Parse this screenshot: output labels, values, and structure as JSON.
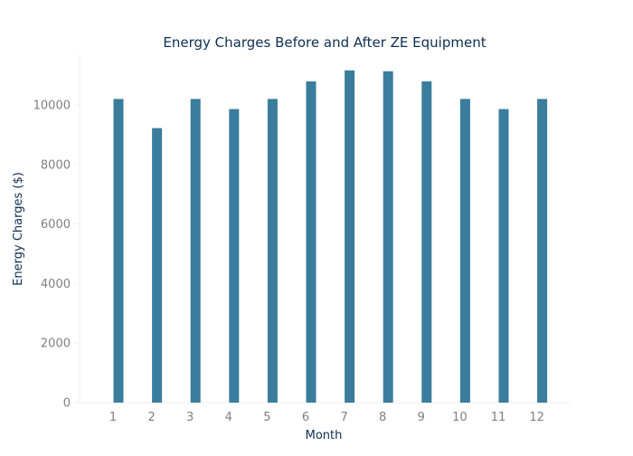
{
  "chart_data": {
    "type": "bar",
    "title": "Energy Charges Before and After ZE Equipment",
    "xlabel": "Month",
    "ylabel": "Energy Charges ($)",
    "categories": [
      "1",
      "2",
      "3",
      "4",
      "5",
      "6",
      "7",
      "8",
      "9",
      "10",
      "11",
      "12"
    ],
    "series": [
      {
        "values": [
          10200,
          9220,
          10200,
          9860,
          10200,
          10790,
          11160,
          11130,
          10790,
          10200,
          9860,
          10200
        ]
      }
    ],
    "ylim": [
      0,
      11700
    ],
    "yticks": [
      0,
      2000,
      4000,
      6000,
      8000,
      10000
    ],
    "grid": false,
    "legend": "none"
  },
  "colors": {
    "bar": "#3a7d9c",
    "title": "#0d2f52",
    "axis_label": "#0d2f52",
    "tick_label": "#808080",
    "axis_line": "#eeeeee"
  }
}
